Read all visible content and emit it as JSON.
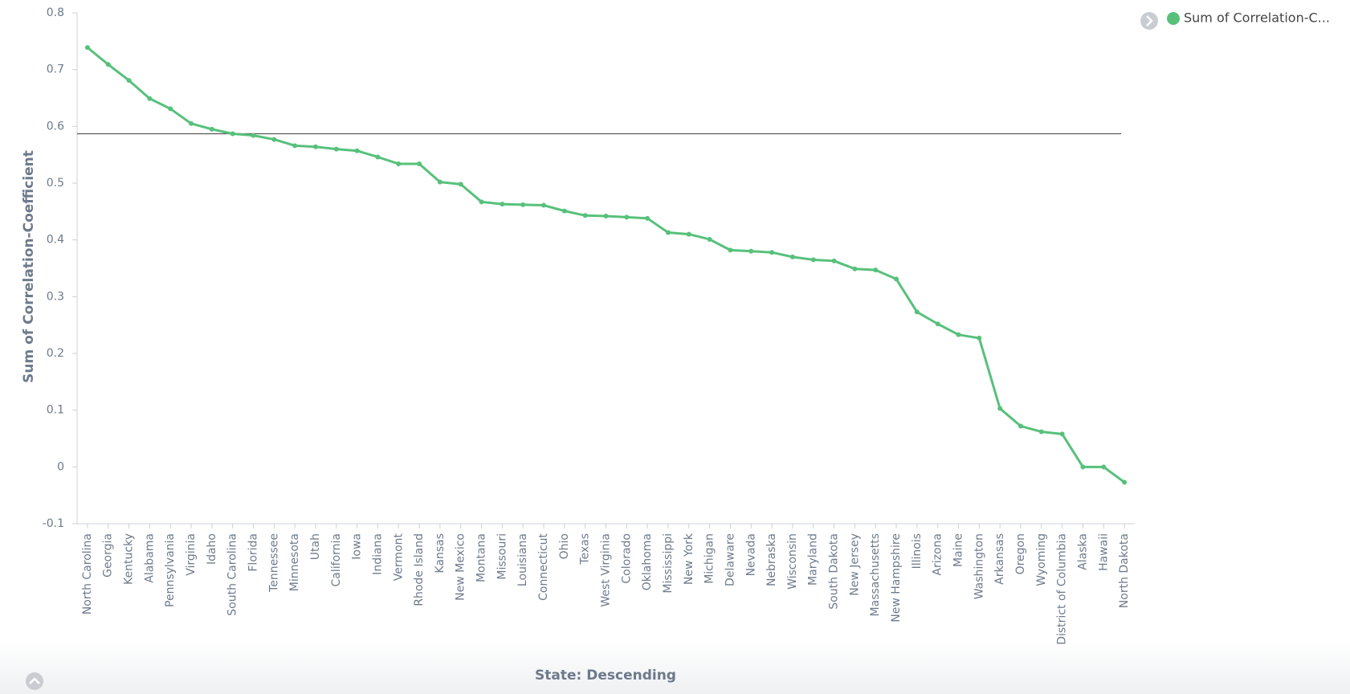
{
  "chart_data": {
    "type": "line",
    "x_label": "State: Descending",
    "y_label": "Sum of Correlation-Coefficient",
    "categories": [
      "North Carolina",
      "Georgia",
      "Kentucky",
      "Alabama",
      "Pennsylvania",
      "Virginia",
      "Idaho",
      "South Carolina",
      "Florida",
      "Tennessee",
      "Minnesota",
      "Utah",
      "California",
      "Iowa",
      "Indiana",
      "Vermont",
      "Rhode Island",
      "Kansas",
      "New Mexico",
      "Montana",
      "Missouri",
      "Louisiana",
      "Connecticut",
      "Ohio",
      "Texas",
      "West Virginia",
      "Colorado",
      "Oklahoma",
      "Mississippi",
      "New York",
      "Michigan",
      "Delaware",
      "Nevada",
      "Nebraska",
      "Wisconsin",
      "Maryland",
      "South Dakota",
      "New Jersey",
      "Massachusetts",
      "New Hampshire",
      "Illinois",
      "Arizona",
      "Maine",
      "Washington",
      "Arkansas",
      "Oregon",
      "Wyoming",
      "District of Columbia",
      "Alaska",
      "Hawaii",
      "North Dakota"
    ],
    "series": [
      {
        "name": "Sum of Correlation-C...",
        "color": "#57c17b",
        "values": [
          0.739,
          0.709,
          0.681,
          0.649,
          0.631,
          0.605,
          0.595,
          0.587,
          0.584,
          0.577,
          0.566,
          0.564,
          0.56,
          0.557,
          0.546,
          0.534,
          0.534,
          0.502,
          0.498,
          0.467,
          0.463,
          0.462,
          0.461,
          0.451,
          0.443,
          0.442,
          0.44,
          0.438,
          0.413,
          0.41,
          0.401,
          0.382,
          0.38,
          0.378,
          0.37,
          0.365,
          0.363,
          0.349,
          0.347,
          0.331,
          0.273,
          0.252,
          0.233,
          0.227,
          0.103,
          0.072,
          0.062,
          0.058,
          0,
          0,
          -0.027
        ]
      }
    ],
    "reference_line": 0.587,
    "ylim": [
      -0.1,
      0.8
    ],
    "yticks": [
      -0.1,
      0,
      0.1,
      0.2,
      0.3,
      0.4,
      0.5,
      0.6,
      0.7,
      0.8
    ],
    "legend": "top-right"
  }
}
